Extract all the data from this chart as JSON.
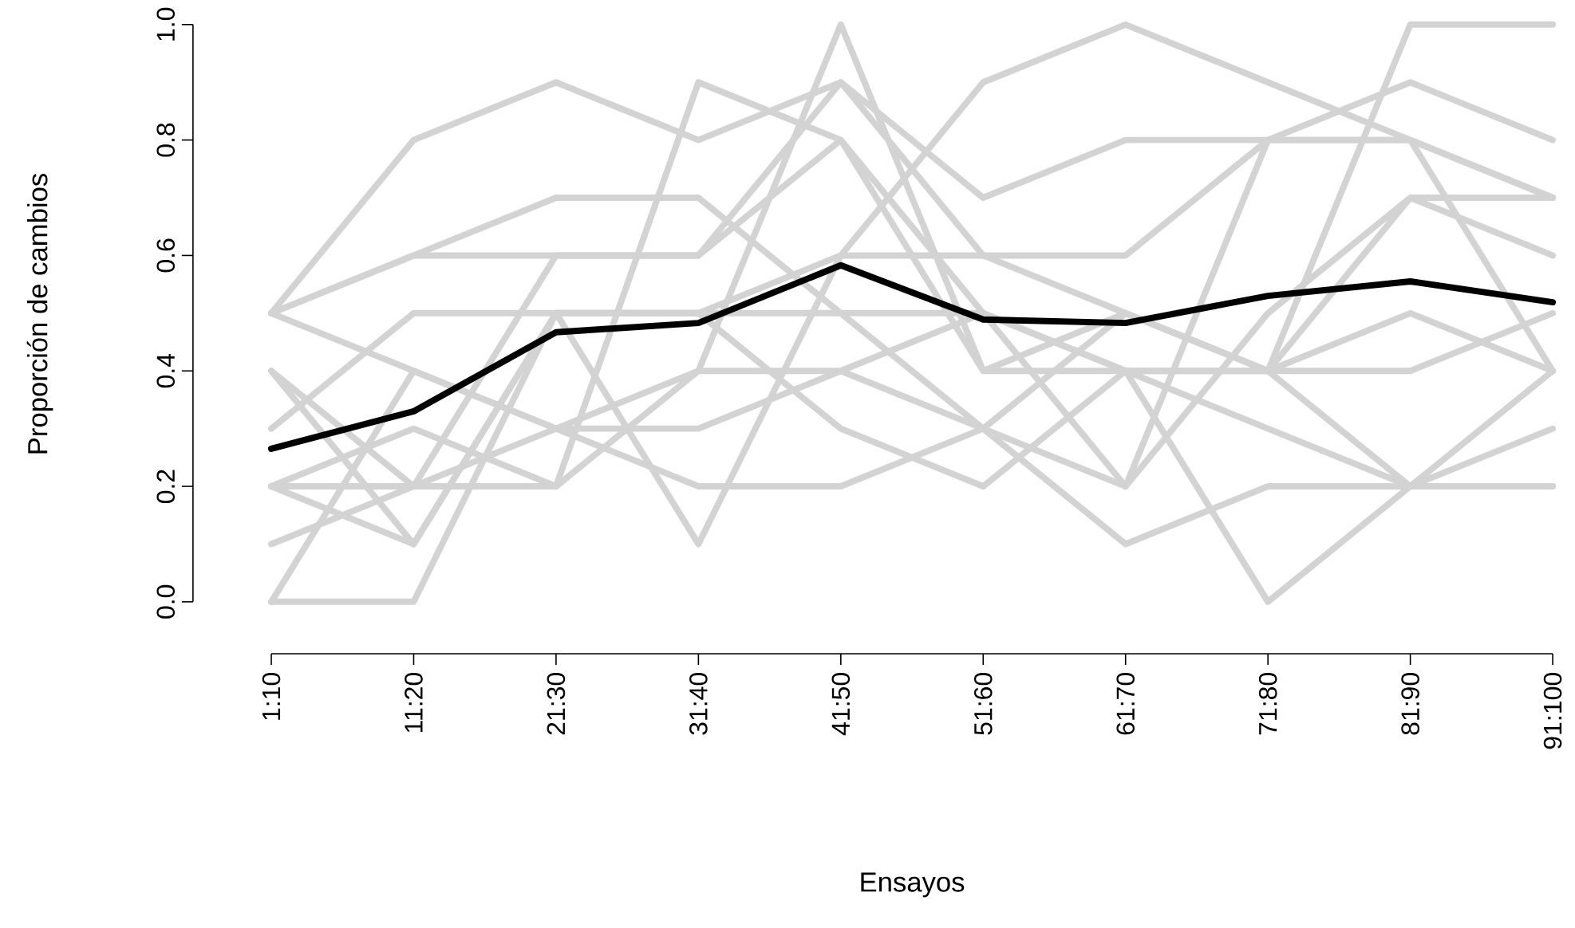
{
  "chart_data": {
    "type": "line",
    "xlabel": "Ensayos",
    "ylabel": "Proporción de cambios",
    "categories": [
      "1:10",
      "11:20",
      "21:30",
      "31:40",
      "41:50",
      "51:60",
      "61:70",
      "71:80",
      "81:90",
      "91:100"
    ],
    "ylim": [
      0,
      1
    ],
    "yticks": [
      {
        "value": 0,
        "label": "0.0"
      },
      {
        "value": 0.2,
        "label": "0.2"
      },
      {
        "value": 0.4,
        "label": "0.4"
      },
      {
        "value": 0.6,
        "label": "0.6"
      },
      {
        "value": 0.8,
        "label": "0.8"
      },
      {
        "value": 1,
        "label": "1.0"
      }
    ],
    "marker": "none",
    "line_style": "solid",
    "series": [
      {
        "color": "#d3d3d3",
        "values": [
          0.5,
          0.8,
          0.9,
          0.8,
          0.9,
          0.7,
          0.8,
          0.8,
          0.8,
          0.7
        ]
      },
      {
        "color": "#d3d3d3",
        "values": [
          0.5,
          0.6,
          0.7,
          0.7,
          0.5,
          0.5,
          0.4,
          0.4,
          0.4,
          0.5
        ]
      },
      {
        "color": "#d3d3d3",
        "values": [
          0.5,
          0.4,
          0.3,
          0.3,
          0.4,
          0.3,
          0.2,
          0.5,
          0.7,
          0.7
        ]
      },
      {
        "color": "#d3d3d3",
        "values": [
          0.4,
          0.1,
          0.5,
          0.5,
          0.5,
          0.3,
          0.5,
          0.4,
          0.5,
          0.4
        ]
      },
      {
        "color": "#d3d3d3",
        "values": [
          0.3,
          0.5,
          0.5,
          0.5,
          0.6,
          0.6,
          0.6,
          0.8,
          0.8,
          0.4
        ]
      },
      {
        "color": "#d3d3d3",
        "values": [
          0.2,
          0.2,
          0.6,
          0.6,
          0.8,
          0.4,
          0.5,
          0.4,
          0.2,
          0.2
        ]
      },
      {
        "color": "#d3d3d3",
        "values": [
          0.2,
          0.3,
          0.2,
          0.9,
          0.8,
          0.5,
          0.2,
          0.8,
          0.9,
          0.8
        ]
      },
      {
        "color": "#d3d3d3",
        "values": [
          0.1,
          0.2,
          0.3,
          0.4,
          0.4,
          0.5,
          0.4,
          0.4,
          0.7,
          0.6
        ]
      },
      {
        "color": "#d3d3d3",
        "values": [
          0.0,
          0.0,
          0.5,
          0.1,
          0.6,
          0.9,
          1.0,
          0.9,
          0.8,
          0.7
        ]
      },
      {
        "color": "#d3d3d3",
        "values": [
          0.0,
          0.4,
          0.3,
          0.2,
          0.2,
          0.3,
          0.1,
          0.2,
          0.2,
          0.2
        ]
      },
      {
        "color": "#d3d3d3",
        "values": [
          0.4,
          0.2,
          0.2,
          0.4,
          1.0,
          0.4,
          0.4,
          0.0,
          0.2,
          0.4
        ]
      },
      {
        "color": "#d3d3d3",
        "values": [
          0.2,
          0.1,
          0.5,
          0.5,
          0.3,
          0.2,
          0.4,
          0.3,
          0.2,
          0.3
        ]
      },
      {
        "color": "#d3d3d3",
        "values": [
          0.5,
          0.6,
          0.6,
          0.6,
          0.9,
          0.6,
          0.5,
          0.4,
          1.0,
          1.0
        ]
      },
      {
        "color": "#000000",
        "values": [
          0.265,
          0.33,
          0.467,
          0.483,
          0.583,
          0.489,
          0.483,
          0.53,
          0.555,
          0.519
        ]
      }
    ]
  }
}
